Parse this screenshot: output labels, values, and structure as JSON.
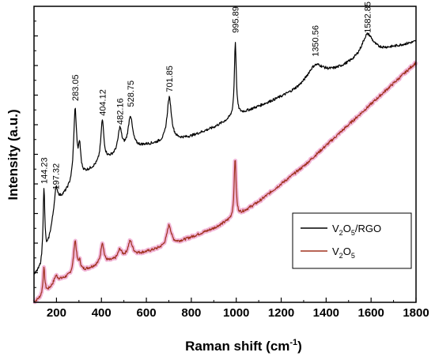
{
  "chart_data": {
    "type": "line",
    "xlabel": "Raman shift (cm",
    "xlabel_sup": "-1",
    "xlabel_close": ")",
    "ylabel": "Intensity (a.u.)",
    "xlim": [
      100,
      1800
    ],
    "ylim": [
      0,
      100
    ],
    "x_ticks": [
      200,
      400,
      600,
      800,
      1000,
      1200,
      1400,
      1600,
      1800
    ],
    "y_ticks_shown": false,
    "legend_position": "center-right",
    "series": [
      {
        "name": "V2O5/RGO",
        "name_parts": [
          "V",
          "2",
          "O",
          "5",
          "/RGO"
        ],
        "color": "#000000",
        "baseline": [
          [
            100,
            9
          ],
          [
            145,
            12
          ],
          [
            200,
            33
          ],
          [
            300,
            42
          ],
          [
            400,
            47
          ],
          [
            500,
            51
          ],
          [
            600,
            53
          ],
          [
            700,
            54
          ],
          [
            800,
            56
          ],
          [
            900,
            59
          ],
          [
            1000,
            63
          ],
          [
            1100,
            66
          ],
          [
            1200,
            69
          ],
          [
            1300,
            72
          ],
          [
            1400,
            76
          ],
          [
            1500,
            80
          ],
          [
            1600,
            84
          ],
          [
            1700,
            86
          ],
          [
            1800,
            88
          ]
        ],
        "peaks": [
          {
            "x": 144.23,
            "amp": 26,
            "width": 5
          },
          {
            "x": 197.32,
            "amp": 6,
            "width": 10
          },
          {
            "x": 283.05,
            "amp": 24,
            "width": 8
          },
          {
            "x": 303,
            "amp": 9,
            "width": 6
          },
          {
            "x": 404.12,
            "amp": 14,
            "width": 8
          },
          {
            "x": 482.16,
            "amp": 8,
            "width": 10
          },
          {
            "x": 528.75,
            "amp": 11,
            "width": 12
          },
          {
            "x": 701.85,
            "amp": 15,
            "width": 12
          },
          {
            "x": 995.89,
            "amp": 25,
            "width": 5
          },
          {
            "x": 1350.56,
            "amp": 6,
            "width": 50
          },
          {
            "x": 1582.85,
            "amp": 7,
            "width": 30
          }
        ]
      },
      {
        "name": "V2O5",
        "name_parts": [
          "V",
          "2",
          "O",
          "5"
        ],
        "color": "#a0321e",
        "halo_color": "#f2b6d8",
        "baseline": [
          [
            100,
            0
          ],
          [
            140,
            2
          ],
          [
            200,
            7
          ],
          [
            300,
            10
          ],
          [
            400,
            13
          ],
          [
            500,
            15
          ],
          [
            600,
            17
          ],
          [
            700,
            19
          ],
          [
            800,
            22
          ],
          [
            900,
            25
          ],
          [
            1000,
            29
          ],
          [
            1100,
            34
          ],
          [
            1200,
            40
          ],
          [
            1300,
            46
          ],
          [
            1400,
            53
          ],
          [
            1500,
            60
          ],
          [
            1600,
            67
          ],
          [
            1700,
            74
          ],
          [
            1800,
            81
          ]
        ],
        "peaks": [
          {
            "x": 144,
            "amp": 9,
            "width": 5
          },
          {
            "x": 197,
            "amp": 2,
            "width": 10
          },
          {
            "x": 283,
            "amp": 11,
            "width": 8
          },
          {
            "x": 303,
            "amp": 3,
            "width": 6
          },
          {
            "x": 404,
            "amp": 7,
            "width": 8
          },
          {
            "x": 482,
            "amp": 3,
            "width": 10
          },
          {
            "x": 528,
            "amp": 5,
            "width": 12
          },
          {
            "x": 701,
            "amp": 7,
            "width": 12
          },
          {
            "x": 995,
            "amp": 20,
            "width": 5
          }
        ]
      }
    ],
    "annotations": [
      {
        "text": "144.23",
        "x": 144.23,
        "y": 40,
        "rotate": true
      },
      {
        "text": "197.32",
        "x": 197.32,
        "y": 38,
        "rotate": true
      },
      {
        "text": "283.05",
        "x": 283.05,
        "y": 68,
        "rotate": true
      },
      {
        "text": "404.12",
        "x": 404.12,
        "y": 63,
        "rotate": true
      },
      {
        "text": "482.16",
        "x": 482.16,
        "y": 60,
        "rotate": true
      },
      {
        "text": "528.75",
        "x": 528.75,
        "y": 66,
        "rotate": true
      },
      {
        "text": "701.85",
        "x": 701.85,
        "y": 71,
        "rotate": true
      },
      {
        "text": "995.89",
        "x": 995.89,
        "y": 91,
        "rotate": true
      },
      {
        "text": "1350.56",
        "x": 1350.56,
        "y": 83,
        "rotate": true
      },
      {
        "text": "1582.85",
        "x": 1582.85,
        "y": 91,
        "rotate": true
      }
    ]
  }
}
